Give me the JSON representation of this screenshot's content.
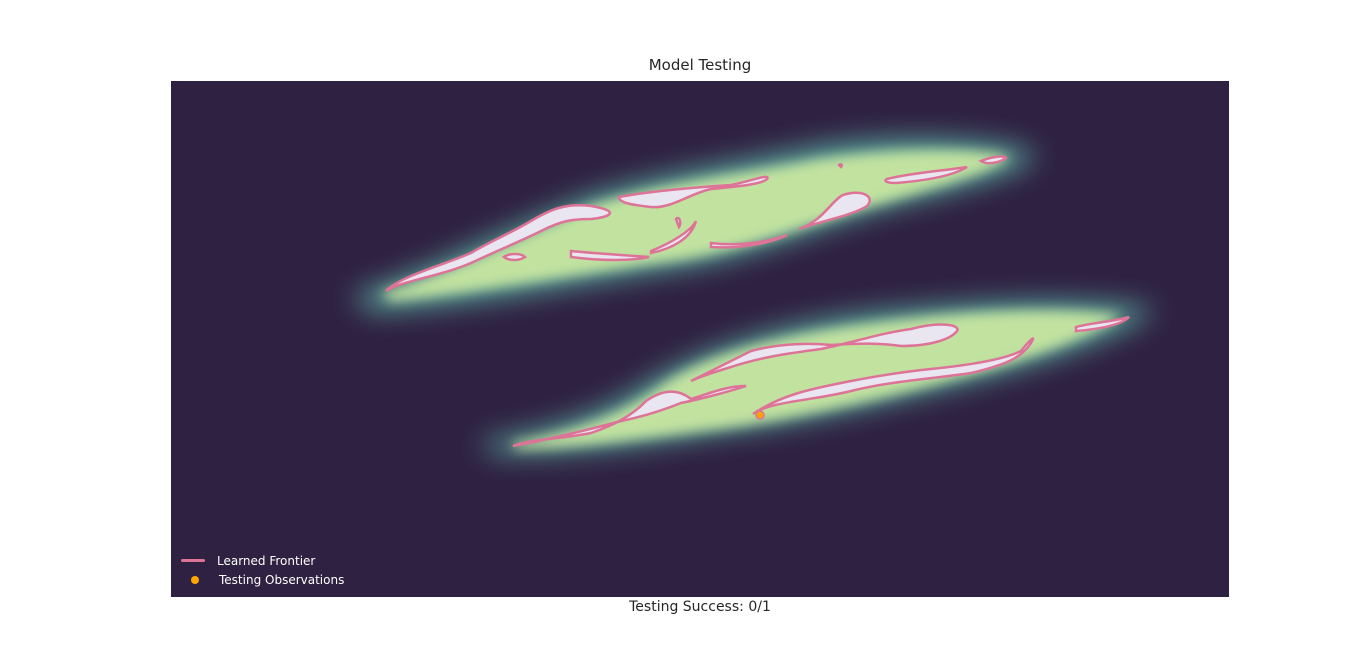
{
  "chart_data": {
    "type": "contour",
    "title": "Model Testing",
    "xlabel": "Testing Success: 0/1",
    "ylabel": "",
    "grid": false,
    "legend_placement": "lower-left",
    "legend": [
      {
        "label": "Learned Frontier",
        "marker": "line",
        "color": "#dd7397"
      },
      {
        "label": "Testing Observations",
        "marker": "dot",
        "color": "#ffa500"
      }
    ],
    "series": [
      {
        "name": "Testing Observations",
        "type": "scatter",
        "points": [
          {
            "count": 1,
            "inside_frontier": false
          }
        ]
      }
    ],
    "testing_success": {
      "successes": 0,
      "total": 1
    },
    "colors": {
      "background": "#2f2142",
      "density_high": "#e9e6f1",
      "density_mid": "#c8e6a0",
      "density_low": "#5fb2a6",
      "frontier": "#dd7397",
      "observation": "#ffa500"
    }
  }
}
